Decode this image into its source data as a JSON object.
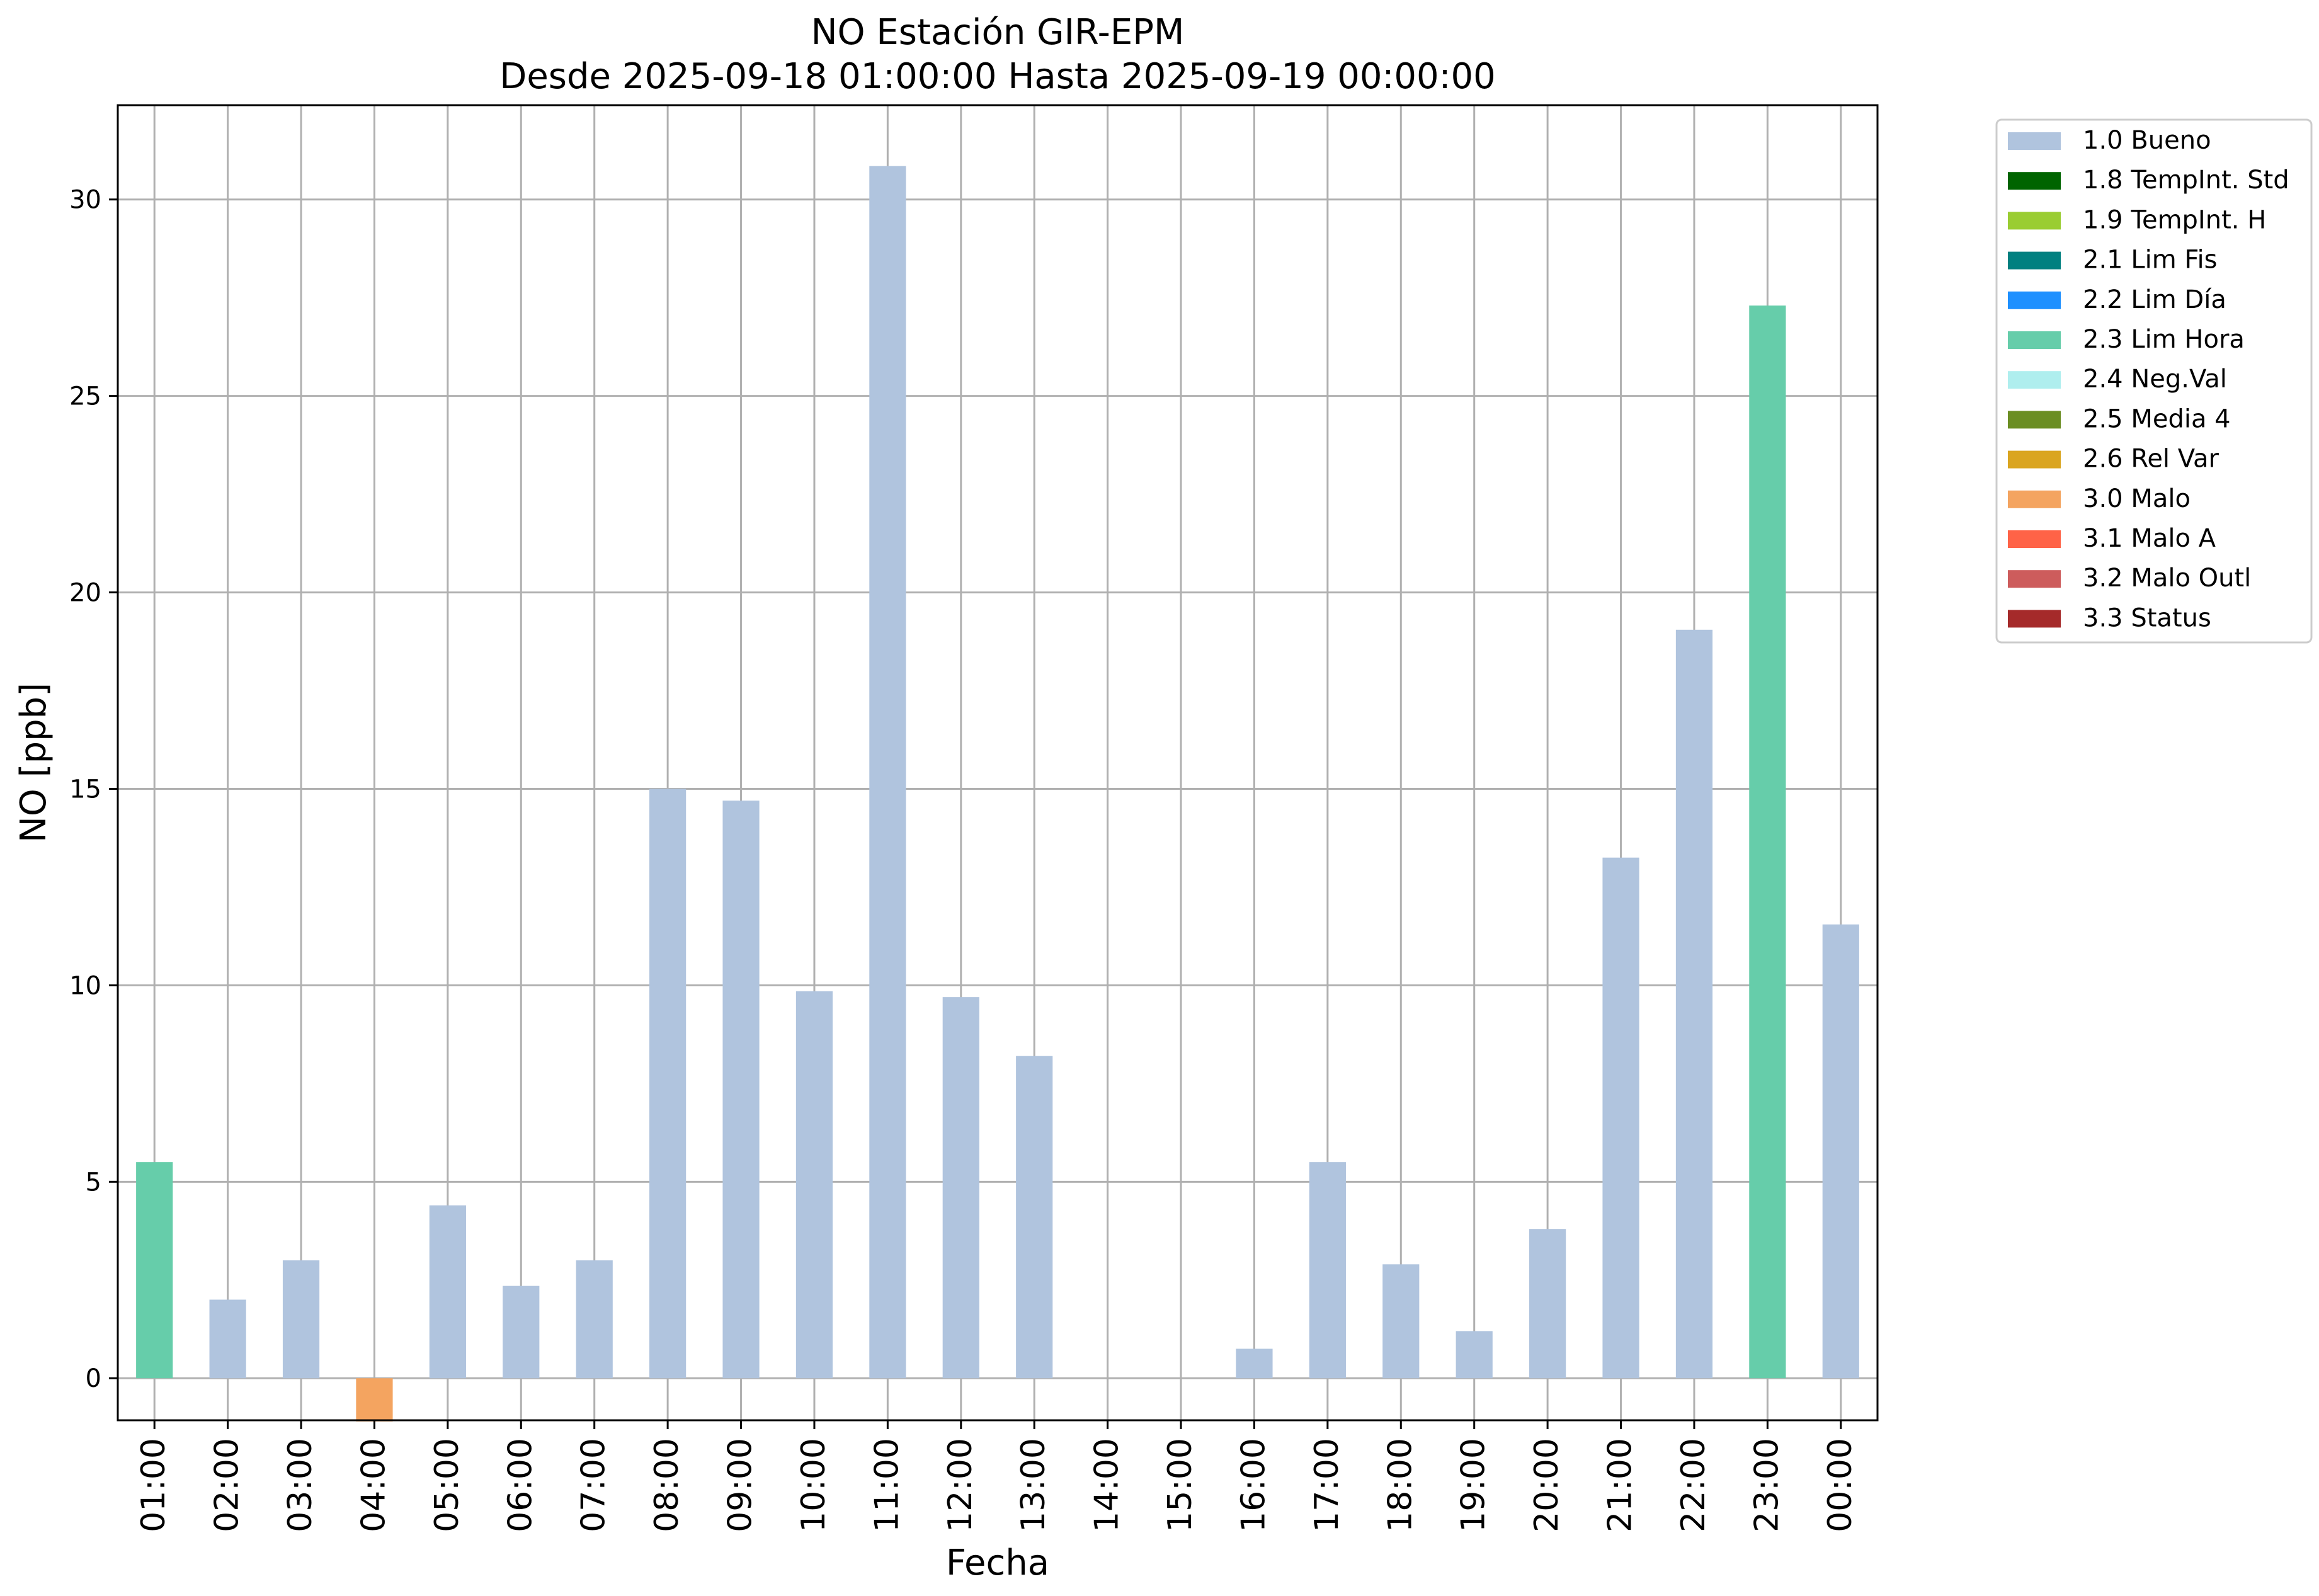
{
  "chart_data": {
    "type": "bar",
    "title": "NO Estación GIR-EPM",
    "subtitle": "Desde 2025-09-18 01:00:00 Hasta 2025-09-19 00:00:00",
    "xlabel": "Fecha",
    "ylabel": "NO [ppb]",
    "ylim": [
      -1.07,
      32.4
    ],
    "yticks": [
      0,
      5,
      10,
      15,
      20,
      25,
      30
    ],
    "grid": true,
    "legend_position": "outside-top-right",
    "categories": [
      "01:00",
      "02:00",
      "03:00",
      "04:00",
      "05:00",
      "06:00",
      "07:00",
      "08:00",
      "09:00",
      "10:00",
      "11:00",
      "12:00",
      "13:00",
      "14:00",
      "15:00",
      "16:00",
      "17:00",
      "18:00",
      "19:00",
      "20:00",
      "21:00",
      "22:00",
      "23:00",
      "00:00"
    ],
    "values": [
      5.5,
      2.0,
      3.0,
      -1.1,
      4.4,
      2.35,
      3.0,
      15.0,
      14.7,
      9.85,
      30.85,
      9.7,
      8.2,
      null,
      null,
      0.75,
      5.5,
      2.9,
      1.2,
      3.8,
      13.25,
      19.05,
      27.3,
      11.55
    ],
    "flags": [
      "2.3 Lim Hora",
      "1.0 Bueno",
      "1.0 Bueno",
      "3.0 Malo",
      "1.0 Bueno",
      "1.0 Bueno",
      "1.0 Bueno",
      "1.0 Bueno",
      "1.0 Bueno",
      "1.0 Bueno",
      "1.0 Bueno",
      "1.0 Bueno",
      "1.0 Bueno",
      null,
      null,
      "1.0 Bueno",
      "1.0 Bueno",
      "1.0 Bueno",
      "1.0 Bueno",
      "1.0 Bueno",
      "1.0 Bueno",
      "1.0 Bueno",
      "2.3 Lim Hora",
      "1.0 Bueno"
    ],
    "legend": [
      {
        "name": "1.0 Bueno",
        "color": "#b0c4de"
      },
      {
        "name": "1.8 TempInt. Std",
        "color": "#006400"
      },
      {
        "name": "1.9 TempInt. H",
        "color": "#9acd32"
      },
      {
        "name": "2.1 Lim Fis",
        "color": "#008080"
      },
      {
        "name": "2.2 Lim Día",
        "color": "#1e90ff"
      },
      {
        "name": "2.3 Lim Hora",
        "color": "#66cdaa"
      },
      {
        "name": "2.4 Neg.Val",
        "color": "#afeeee"
      },
      {
        "name": "2.5 Media 4",
        "color": "#6b8e23"
      },
      {
        "name": "2.6 Rel Var",
        "color": "#daa520"
      },
      {
        "name": "3.0 Malo",
        "color": "#f4a460"
      },
      {
        "name": "3.1 Malo A",
        "color": "#ff6347"
      },
      {
        "name": "3.2 Malo Outl",
        "color": "#cd5c5c"
      },
      {
        "name": "3.3 Status",
        "color": "#a52a2a"
      }
    ]
  }
}
